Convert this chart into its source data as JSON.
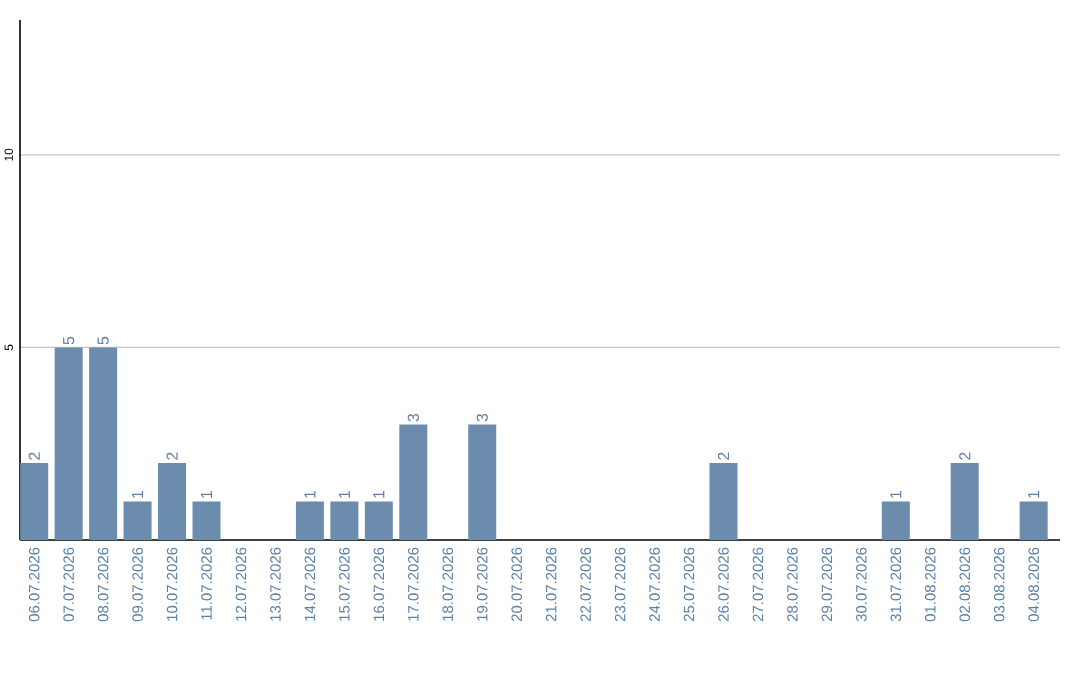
{
  "chart_data": {
    "type": "bar",
    "categories": [
      "06.07.2026",
      "07.07.2026",
      "08.07.2026",
      "09.07.2026",
      "10.07.2026",
      "11.07.2026",
      "12.07.2026",
      "13.07.2026",
      "14.07.2026",
      "15.07.2026",
      "16.07.2026",
      "17.07.2026",
      "18.07.2026",
      "19.07.2026",
      "20.07.2026",
      "21.07.2026",
      "22.07.2026",
      "23.07.2026",
      "24.07.2026",
      "25.07.2026",
      "26.07.2026",
      "27.07.2026",
      "28.07.2026",
      "29.07.2026",
      "30.07.2026",
      "31.07.2026",
      "01.08.2026",
      "02.08.2026",
      "03.08.2026",
      "04.08.2026"
    ],
    "values": [
      2,
      5,
      5,
      1,
      2,
      1,
      0,
      0,
      1,
      1,
      1,
      3,
      0,
      3,
      0,
      0,
      0,
      0,
      0,
      0,
      2,
      0,
      0,
      0,
      0,
      1,
      0,
      2,
      0,
      1
    ],
    "value_labels": [
      "2",
      "5",
      "5",
      "1",
      "2",
      "1",
      null,
      null,
      "1",
      "1",
      "1",
      "3",
      null,
      "3",
      null,
      null,
      null,
      null,
      null,
      null,
      "2",
      null,
      null,
      null,
      null,
      "1",
      null,
      "2",
      null,
      "1"
    ],
    "color": "#6b8cad",
    "ylim": [
      0,
      13.5
    ],
    "yticks": [
      5,
      10
    ],
    "grid": "y"
  }
}
